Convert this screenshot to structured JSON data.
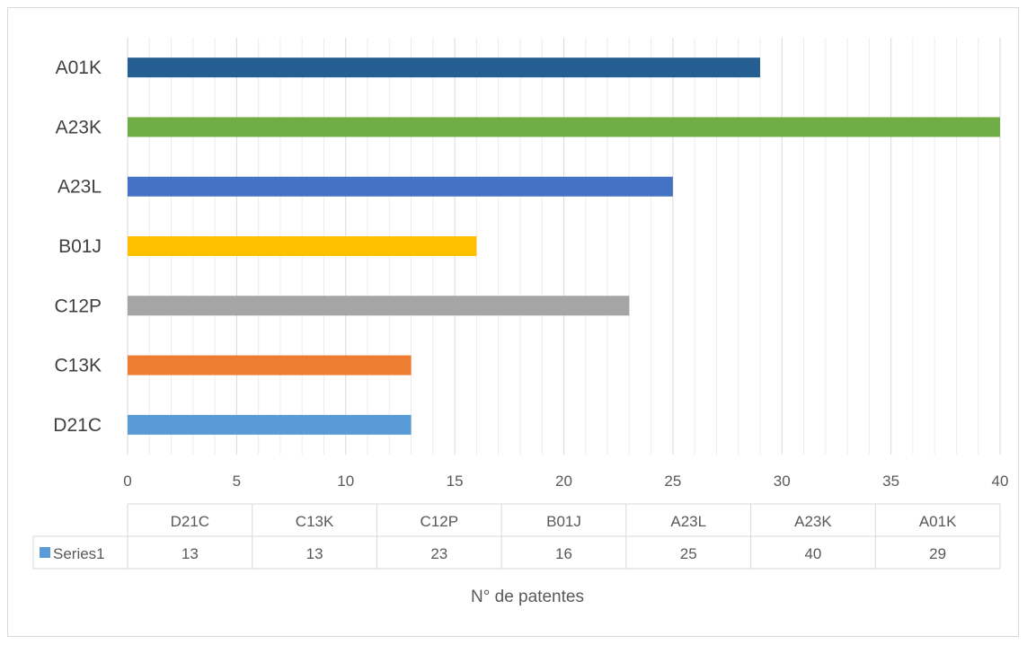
{
  "chart_data": {
    "type": "bar",
    "orientation": "horizontal",
    "categories": [
      "D21C",
      "C13K",
      "C12P",
      "B01J",
      "A23L",
      "A23K",
      "A01K"
    ],
    "series": [
      {
        "name": "Series1",
        "values": [
          13,
          13,
          23,
          16,
          25,
          40,
          29
        ]
      }
    ],
    "bar_colors": [
      "#5b9bd5",
      "#ed7d31",
      "#a5a5a5",
      "#ffc000",
      "#4472c4",
      "#70ad47",
      "#255e91"
    ],
    "legend_color": "#5b9bd5",
    "xlabel": "N° de patentes",
    "xlim": [
      0,
      40
    ],
    "x_major_ticks": [
      0,
      5,
      10,
      15,
      20,
      25,
      30,
      35,
      40
    ],
    "x_minor_step": 1,
    "grid": true,
    "data_table": true
  }
}
